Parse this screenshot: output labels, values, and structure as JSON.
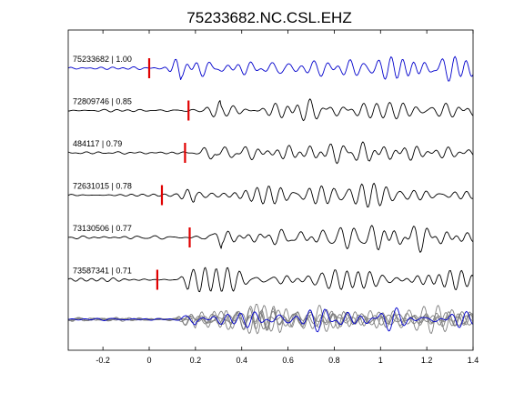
{
  "chart_data": {
    "type": "line",
    "title": "75233682.NC.CSL.EHZ",
    "xlabel": "",
    "ylabel": "",
    "xlim": [
      -0.35,
      1.4
    ],
    "xticks": [
      "-0.2",
      "0",
      "0.2",
      "0.4",
      "0.6",
      "0.8",
      "1",
      "1.2",
      "1.4"
    ],
    "xtick_values": [
      -0.2,
      0,
      0.2,
      0.4,
      0.6,
      0.8,
      1.0,
      1.2,
      1.4
    ],
    "grid": false,
    "colors": {
      "reference": "#0000cc",
      "trace": "#000000",
      "overlay": "#808080",
      "pick": "#e00000"
    },
    "series": [
      {
        "name": "75233682 | 1.00",
        "color": "#0000cc",
        "pick_time": 0.0,
        "scale": 1.0,
        "seed": 3
      },
      {
        "name": "72809746 | 0.85",
        "color": "#000000",
        "pick_time": 0.17,
        "scale": 0.9,
        "seed": 11
      },
      {
        "name": "484117 | 0.79",
        "color": "#000000",
        "pick_time": 0.155,
        "scale": 0.9,
        "seed": 17
      },
      {
        "name": "72631015 | 0.78",
        "color": "#000000",
        "pick_time": 0.055,
        "scale": 0.9,
        "seed": 23
      },
      {
        "name": "73130506 | 0.77",
        "color": "#000000",
        "pick_time": 0.175,
        "scale": 0.95,
        "seed": 29
      },
      {
        "name": "73587341 | 0.71",
        "color": "#000000",
        "pick_time": 0.035,
        "scale": 1.0,
        "seed": 37
      }
    ],
    "overlay": {
      "description_free": true,
      "color": "#808080",
      "reference_color": "#0000cc"
    }
  }
}
